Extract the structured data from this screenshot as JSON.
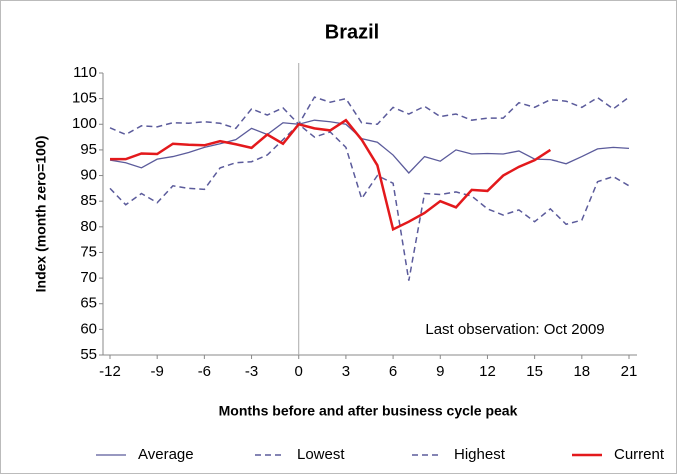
{
  "chart_data": {
    "type": "line",
    "title": "Brazil",
    "xlabel": "Months before and after business cycle peak",
    "ylabel": "Index (month zero=100)",
    "annotation": "Last observation: Oct 2009",
    "x": [
      -12,
      -11,
      -10,
      -9,
      -8,
      -7,
      -6,
      -5,
      -4,
      -3,
      -2,
      -1,
      0,
      1,
      2,
      3,
      4,
      5,
      6,
      7,
      8,
      9,
      10,
      11,
      12,
      13,
      14,
      15,
      16,
      17,
      18,
      19,
      20,
      21
    ],
    "series": [
      {
        "name": "Average",
        "color": "#5b5b9b",
        "dash": false,
        "width": 1.3,
        "values": [
          93,
          92.5,
          91.5,
          93.2,
          93.7,
          94.5,
          95.5,
          96.2,
          97,
          99.2,
          98,
          100.3,
          100,
          100.8,
          100.5,
          100,
          97.2,
          96.5,
          94,
          90.5,
          93.7,
          92.8,
          95,
          94.2,
          94.3,
          94.2,
          94.8,
          93.2,
          93.1,
          92.3,
          93.7,
          95.2,
          95.5,
          95.3
        ]
      },
      {
        "name": "Lowest",
        "color": "#5b5b9b",
        "dash": true,
        "width": 1.5,
        "values": [
          87.5,
          84.3,
          86.5,
          84.7,
          88,
          87.5,
          87.3,
          91.5,
          92.5,
          92.7,
          94,
          97,
          100,
          97.5,
          98.5,
          95.5,
          85.5,
          90,
          88.5,
          69.5,
          86.5,
          86.3,
          86.8,
          86,
          83.5,
          82.3,
          83.3,
          81,
          83.5,
          80.5,
          81.3,
          88.8,
          89.8,
          88
        ]
      },
      {
        "name": "Highest",
        "color": "#5b5b9b",
        "dash": true,
        "width": 1.5,
        "values": [
          99.3,
          98,
          99.7,
          99.5,
          100.3,
          100.2,
          100.5,
          100.2,
          99.2,
          103,
          101.8,
          103.2,
          100,
          105.3,
          104.3,
          105,
          100.3,
          100,
          103.3,
          102,
          103.5,
          101.5,
          102,
          100.8,
          101.2,
          101.2,
          104.2,
          103.3,
          104.8,
          104.5,
          103.3,
          105.2,
          103,
          105.3
        ]
      },
      {
        "name": "Current",
        "color": "#e3191c",
        "dash": false,
        "width": 2.5,
        "values": [
          93.2,
          93.2,
          94.3,
          94.2,
          96.2,
          96,
          95.9,
          96.7,
          96.1,
          95.4,
          98,
          96.2,
          100,
          99.2,
          98.8,
          100.8,
          97,
          92,
          79.5,
          81,
          82.7,
          85,
          83.8,
          87.2,
          87,
          90,
          91.7,
          93,
          95,
          null,
          null,
          null,
          null,
          null
        ]
      }
    ],
    "xlim": [
      -12,
      21
    ],
    "xticks": [
      -12,
      -9,
      -6,
      -3,
      0,
      3,
      6,
      9,
      12,
      15,
      18,
      21
    ],
    "ylim": [
      55,
      110
    ],
    "yticks": [
      55,
      60,
      65,
      70,
      75,
      80,
      85,
      90,
      95,
      100,
      105,
      110
    ],
    "vline": 0,
    "grid": false,
    "legend": "bottom"
  }
}
